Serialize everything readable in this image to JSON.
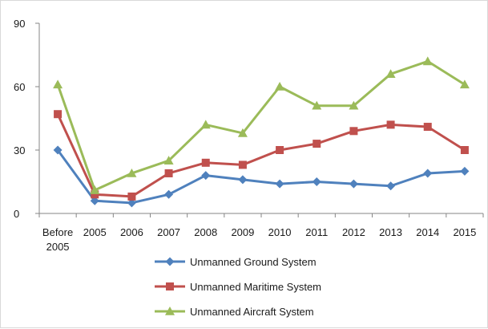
{
  "chart_data": {
    "type": "line",
    "title": "",
    "xlabel": "",
    "ylabel": "",
    "ylim": [
      0,
      90
    ],
    "yticks": [
      0,
      30,
      60,
      90
    ],
    "categories": [
      "Before 2005",
      "2005",
      "2006",
      "2007",
      "2008",
      "2009",
      "2010",
      "2011",
      "2012",
      "2013",
      "2014",
      "2015"
    ],
    "grid": false,
    "legend_position": "bottom",
    "series": [
      {
        "name": "Unmanned Ground  System",
        "color": "#4f81bd",
        "marker": "diamond",
        "values": [
          30,
          6,
          5,
          9,
          18,
          16,
          14,
          15,
          14,
          13,
          19,
          20
        ]
      },
      {
        "name": "Unmanned Maritime System",
        "color": "#c0504d",
        "marker": "square",
        "values": [
          47,
          9,
          8,
          19,
          24,
          23,
          30,
          33,
          39,
          42,
          41,
          30
        ]
      },
      {
        "name": "Unmanned Aircraft System",
        "color": "#9bbb59",
        "marker": "triangle",
        "values": [
          61,
          11,
          19,
          25,
          42,
          38,
          60,
          51,
          51,
          66,
          72,
          61
        ]
      }
    ]
  }
}
